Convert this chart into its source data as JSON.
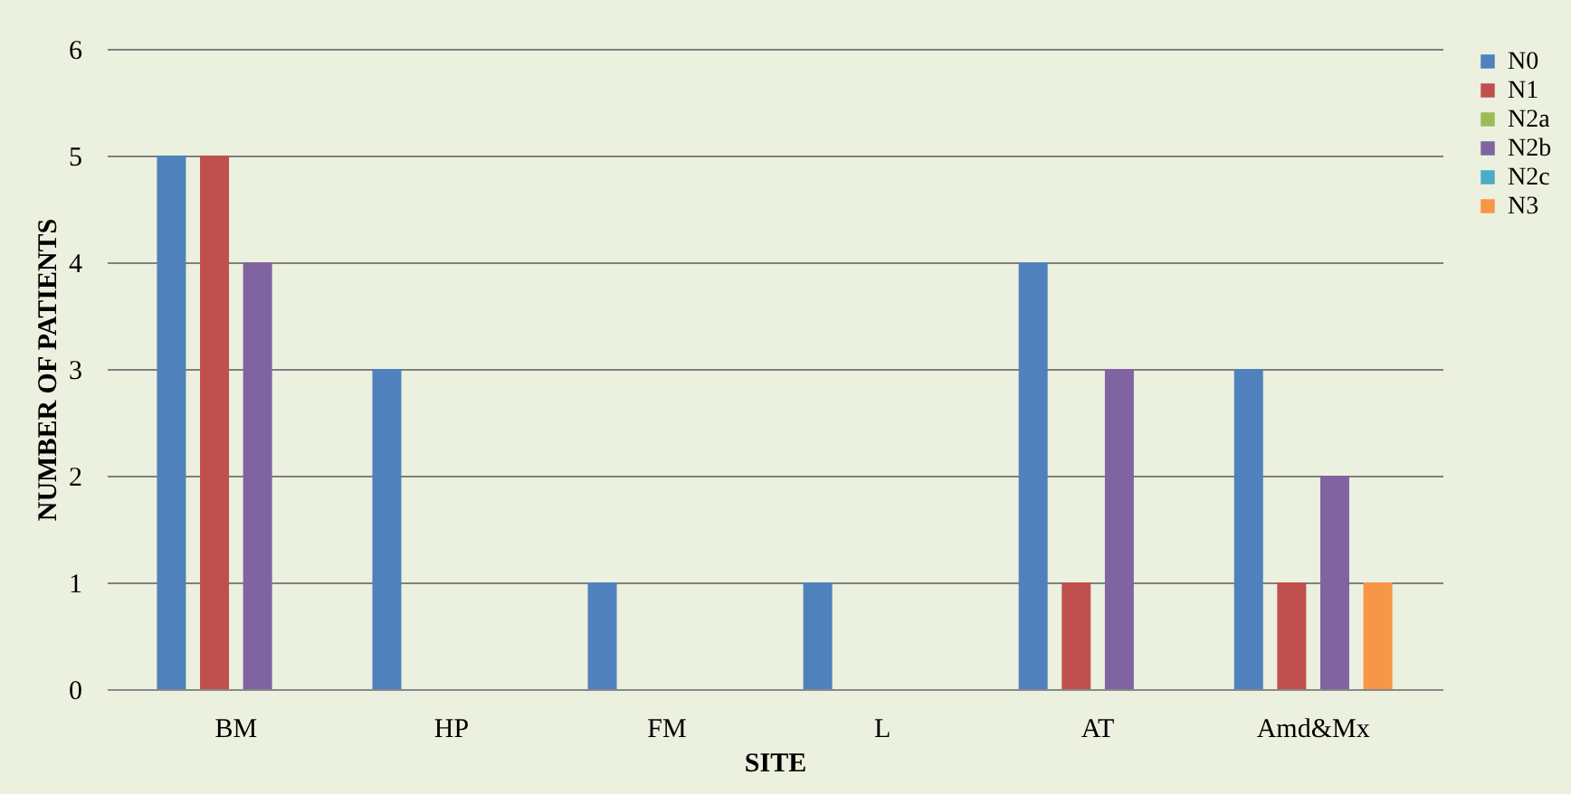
{
  "chart_data": {
    "type": "bar",
    "xlabel": "SITE",
    "ylabel": "NUMBER OF PATIENTS",
    "categories": [
      "BM",
      "HP",
      "FM",
      "L",
      "AT",
      "Amd&Mx"
    ],
    "series": [
      {
        "name": "N0",
        "color": "#4f81bd",
        "values": [
          5,
          3,
          1,
          1,
          4,
          3
        ]
      },
      {
        "name": "N1",
        "color": "#c0504d",
        "values": [
          5,
          null,
          null,
          null,
          1,
          1
        ]
      },
      {
        "name": "N2a",
        "color": "#9bbb59",
        "values": [
          null,
          null,
          null,
          null,
          null,
          null
        ]
      },
      {
        "name": "N2b",
        "color": "#8064a2",
        "values": [
          4,
          null,
          null,
          null,
          3,
          2
        ]
      },
      {
        "name": "N2c",
        "color": "#4bacc6",
        "values": [
          null,
          null,
          null,
          null,
          null,
          null
        ]
      },
      {
        "name": "N3",
        "color": "#f79646",
        "values": [
          null,
          null,
          null,
          null,
          null,
          1
        ]
      }
    ],
    "ylim": [
      0,
      6
    ],
    "yticks": [
      0,
      1,
      2,
      3,
      4,
      5,
      6
    ],
    "grid": "y",
    "legend": "right"
  }
}
